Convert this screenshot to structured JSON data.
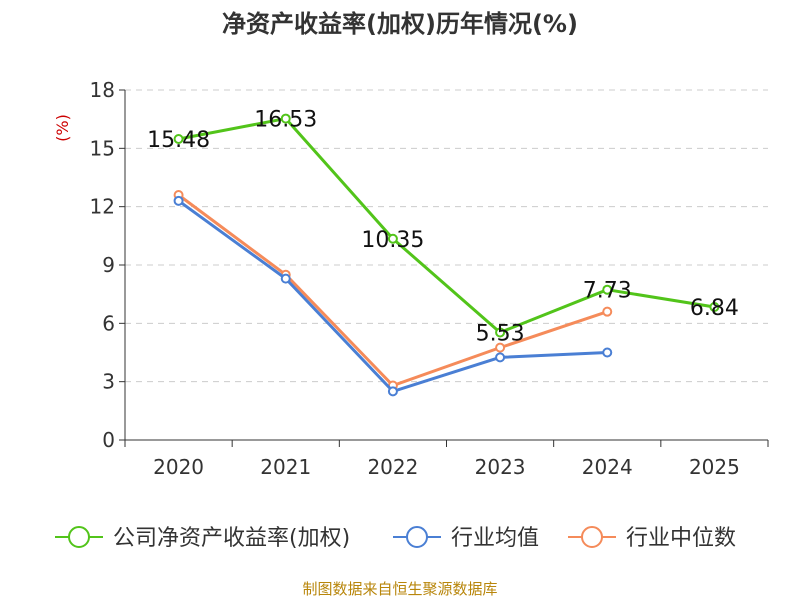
{
  "chart_data": {
    "type": "line",
    "title": "净资产收益率(加权)历年情况(%)",
    "ylabel": "(%)",
    "xlabel": "",
    "categories": [
      "2020",
      "2021",
      "2022",
      "2023",
      "2024",
      "2025"
    ],
    "ylim": [
      0,
      18
    ],
    "yticks": [
      0,
      3,
      6,
      9,
      12,
      15,
      18
    ],
    "grid": true,
    "legend_position": "bottom",
    "series": [
      {
        "name": "公司净资产收益率(加权)",
        "color": "#52c41a",
        "values": [
          15.48,
          16.53,
          10.35,
          5.53,
          7.73,
          6.84
        ],
        "labels": [
          "15.48",
          "16.53",
          "10.35",
          "5.53",
          "7.73",
          "6.84"
        ]
      },
      {
        "name": "行业均值",
        "color": "#4a7fd4",
        "values": [
          12.3,
          8.3,
          2.5,
          4.25,
          4.5,
          null
        ]
      },
      {
        "name": "行业中位数",
        "color": "#f58b5a",
        "values": [
          12.6,
          8.5,
          2.8,
          4.75,
          6.6,
          null
        ]
      }
    ]
  },
  "source_note": "制图数据来自恒生聚源数据库"
}
